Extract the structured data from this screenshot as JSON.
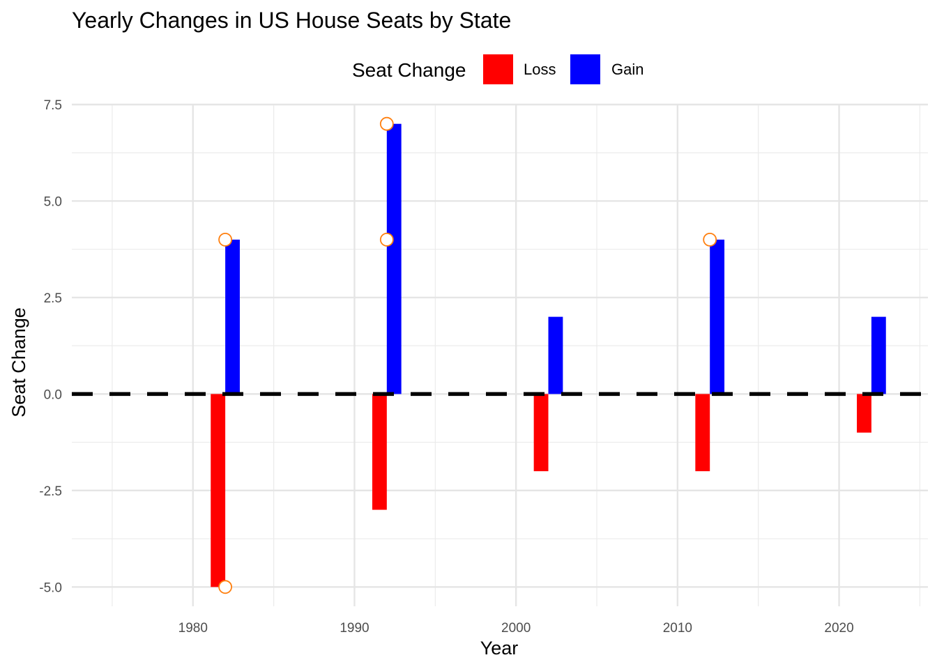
{
  "chart_data": {
    "type": "bar",
    "title": "Yearly Changes in US House Seats by State",
    "xlabel": "Year",
    "ylabel": "Seat Change",
    "xlim": [
      1972.5,
      2025.5
    ],
    "ylim": [
      -5.5,
      7.5
    ],
    "x_ticks": [
      1980,
      1990,
      2000,
      2010,
      2020
    ],
    "x_tick_labels": [
      "1980",
      "1990",
      "2000",
      "2010",
      "2020"
    ],
    "y_ticks": [
      -5.0,
      -2.5,
      0.0,
      2.5,
      5.0,
      7.5
    ],
    "y_tick_labels": [
      "-5.0",
      "-2.5",
      "0.0",
      "2.5",
      "5.0",
      "7.5"
    ],
    "grid": true,
    "reference_line": {
      "y": 0,
      "style": "dashed",
      "color": "#000000"
    },
    "legend": {
      "title": "Seat Change",
      "position": "top",
      "entries": [
        {
          "label": "Loss",
          "color": "#ff0000"
        },
        {
          "label": "Gain",
          "color": "#0000ff"
        }
      ]
    },
    "categories": [
      "1982",
      "1992",
      "2002",
      "2012",
      "2022"
    ],
    "series": [
      {
        "name": "Loss",
        "color": "#ff0000",
        "x": [
          1982,
          1992,
          2002,
          2012,
          2022
        ],
        "values": [
          -5,
          -3,
          -2,
          -2,
          -1
        ]
      },
      {
        "name": "Gain",
        "color": "#0000ff",
        "x": [
          1982,
          1992,
          2002,
          2012,
          2022
        ],
        "values": [
          4,
          7,
          2,
          4,
          2
        ]
      }
    ],
    "points": {
      "color": "#ff7f0e",
      "x": [
        1982,
        1982,
        1992,
        1992,
        2012
      ],
      "y": [
        4,
        -5,
        7,
        4,
        4
      ]
    }
  }
}
